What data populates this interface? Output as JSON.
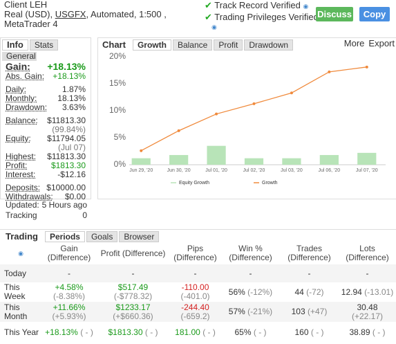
{
  "header": {
    "title": "Client LEH",
    "details": [
      "Real (USD), ",
      "USGFX",
      ", Automated, 1:500 , MetaTrader 4"
    ],
    "verified": [
      "Track Record Verified",
      "Trading Privileges Verified"
    ],
    "buttons": [
      "Discuss",
      "Copy"
    ]
  },
  "info": {
    "tabs": [
      "Info",
      "Stats"
    ],
    "section": "General",
    "groups": [
      [
        {
          "label": "Gain:",
          "value": "+18.13%"
        },
        {
          "label": "Abs. Gain:",
          "value": "+18.13%"
        }
      ],
      [
        {
          "label": "Daily:",
          "value": "1.87%"
        },
        {
          "label": "Monthly:",
          "value": "18.13%"
        },
        {
          "label": "Drawdown:",
          "value": "3.63%"
        }
      ],
      [
        {
          "label": "Balance:",
          "value": "$11813.30"
        },
        {
          "label": "Equity:",
          "note": "(99.84%)",
          "value": "$11794.05"
        },
        {
          "label": "Highest:",
          "note": "(Jul 07)",
          "value": "$11813.30"
        },
        {
          "label": "Profit:",
          "value": "$1813.30"
        },
        {
          "label": "Interest:",
          "value": "-$12.16"
        }
      ],
      [
        {
          "label": "Deposits:",
          "value": "$10000.00"
        },
        {
          "label": "Withdrawals:",
          "value": "$0.00"
        }
      ]
    ],
    "updated": {
      "label": "Updated:",
      "value": "5 Hours ago"
    },
    "tracking": {
      "label": "Tracking",
      "value": "0"
    }
  },
  "chart_tabs": [
    "Chart",
    "Growth",
    "Balance",
    "Profit",
    "Drawdown"
  ],
  "chart_actions": [
    "More",
    "Export"
  ],
  "chart_data": {
    "type": "bar-line",
    "categories": [
      "Jun 29, '20",
      "Jun 30, '20",
      "Jul 01, '20",
      "Jul 02, '20",
      "Jul 03, '20",
      "Jul 06, '20",
      "Jul 07, '20"
    ],
    "series": [
      {
        "name": "Equity Growth",
        "type": "bar",
        "color": "#b8e4b8",
        "values": [
          1.2,
          1.8,
          3.5,
          1.2,
          1.2,
          1.8,
          2.2
        ]
      },
      {
        "name": "Growth",
        "type": "line",
        "color": "#f08a3c",
        "values": [
          2.6,
          6.3,
          9.4,
          11.3,
          13.3,
          17.2,
          18.1
        ]
      }
    ],
    "ylim": [
      0,
      20
    ],
    "yticks": [
      {
        "value": 0,
        "label": "0%"
      },
      {
        "value": 5,
        "label": "5%"
      },
      {
        "value": 10,
        "label": "10%"
      },
      {
        "value": 15,
        "label": "15%"
      },
      {
        "value": 20,
        "label": "20%"
      }
    ]
  },
  "trading": {
    "tabs": [
      "Trading",
      "Periods",
      "Goals",
      "Browser"
    ],
    "columns": [
      {
        "name": "Gain",
        "sub": "(Difference)"
      },
      {
        "name": "Profit (Difference)"
      },
      {
        "name": "Pips",
        "sub": "(Difference)"
      },
      {
        "name": "Win %",
        "sub": "(Difference)"
      },
      {
        "name": "Trades",
        "sub": "(Difference)"
      },
      {
        "name": "Lots",
        "sub": "(Difference)"
      }
    ],
    "rows": [
      {
        "label": "Today",
        "cells": [
          {
            "main": "-"
          },
          {
            "main": "-"
          },
          {
            "main": "-"
          },
          {
            "main": "-"
          },
          {
            "main": "-"
          },
          {
            "main": "-"
          }
        ]
      },
      {
        "label": "This Week",
        "cells": [
          {
            "main": "+4.58%",
            "diff": "(-8.38%)"
          },
          {
            "main": "$517.49",
            "diff": "(-$778.32)"
          },
          {
            "main": "-110.00",
            "diff": "(-401.0)"
          },
          {
            "main": "56%",
            "diff": "(-12%)"
          },
          {
            "main": "44",
            "diff": "(-72)"
          },
          {
            "main": "12.94",
            "diff": "(-13.01)"
          }
        ]
      },
      {
        "label": "This Month",
        "cells": [
          {
            "main": "+11.66%",
            "diff": "(+5.93%)"
          },
          {
            "main": "$1233.17",
            "diff": "(+$660.36)"
          },
          {
            "main": "-244.40",
            "diff": "(-659.2)"
          },
          {
            "main": "57%",
            "diff": "(-21%)"
          },
          {
            "main": "103",
            "diff": "(+47)"
          },
          {
            "main": "30.48",
            "diff": "(+22.17)"
          }
        ]
      },
      {
        "label": "This Year",
        "cells": [
          {
            "main": "+18.13%",
            "diff": "( - )"
          },
          {
            "main": "$1813.30",
            "diff": "( - )"
          },
          {
            "main": "181.00",
            "diff": "( - )"
          },
          {
            "main": "65%",
            "diff": "( - )"
          },
          {
            "main": "160",
            "diff": "( - )"
          },
          {
            "main": "38.89",
            "diff": "( - )"
          }
        ]
      }
    ]
  }
}
